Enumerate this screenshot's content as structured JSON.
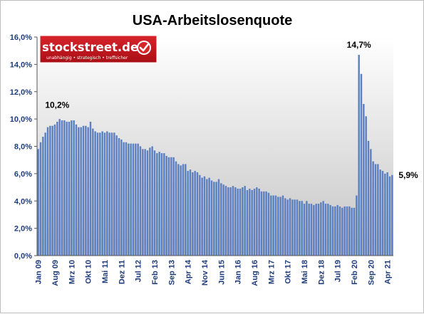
{
  "chart_data": {
    "type": "bar",
    "title": "USA-Arbeitslosenquote",
    "xlabel": "",
    "ylabel": "",
    "ylim": [
      0,
      16
    ],
    "yticks": [
      "0,0%",
      "2,0%",
      "4,0%",
      "6,0%",
      "8,0%",
      "10,0%",
      "12,0%",
      "14,0%",
      "16,0%"
    ],
    "grid": false,
    "start_month": "Jan 09",
    "x_tick_labels": [
      "Jan 09",
      "Aug 09",
      "Mrz 10",
      "Okt 10",
      "Mai 11",
      "Dez 11",
      "Jul 12",
      "Feb 13",
      "Sep 13",
      "Apr 14",
      "Nov 14",
      "Jun 15",
      "Jan 16",
      "Aug 16",
      "Mrz 17",
      "Okt 17",
      "Mai 18",
      "Dez 18",
      "Jul 19",
      "Feb 20",
      "Sep 20",
      "Apr 21"
    ],
    "series": [
      {
        "name": "",
        "color": "#5b7fc0",
        "values": [
          7.8,
          8.3,
          8.7,
          9.0,
          9.4,
          9.5,
          9.5,
          9.6,
          9.8,
          10.0,
          9.9,
          9.9,
          9.8,
          9.8,
          9.9,
          9.9,
          9.6,
          9.4,
          9.4,
          9.5,
          9.5,
          9.4,
          9.8,
          9.3,
          9.1,
          9.0,
          9.0,
          9.1,
          9.0,
          9.1,
          9.0,
          9.0,
          9.0,
          8.8,
          8.6,
          8.5,
          8.3,
          8.3,
          8.2,
          8.2,
          8.2,
          8.2,
          8.2,
          8.0,
          7.8,
          7.8,
          7.7,
          7.9,
          8.0,
          7.7,
          7.5,
          7.6,
          7.5,
          7.5,
          7.3,
          7.2,
          7.2,
          7.2,
          6.9,
          6.7,
          6.6,
          6.7,
          6.7,
          6.2,
          6.3,
          6.1,
          6.2,
          6.1,
          5.9,
          5.7,
          5.8,
          5.6,
          5.7,
          5.5,
          5.4,
          5.4,
          5.6,
          5.3,
          5.2,
          5.1,
          5.0,
          5.0,
          5.1,
          5.0,
          4.9,
          4.9,
          5.0,
          5.1,
          4.8,
          4.9,
          4.8,
          4.9,
          5.0,
          4.9,
          4.7,
          4.7,
          4.7,
          4.6,
          4.4,
          4.4,
          4.4,
          4.3,
          4.3,
          4.4,
          4.2,
          4.1,
          4.2,
          4.1,
          4.1,
          4.1,
          4.0,
          4.0,
          3.8,
          4.0,
          3.8,
          3.8,
          3.7,
          3.8,
          3.8,
          3.9,
          4.0,
          3.8,
          3.8,
          3.7,
          3.6,
          3.6,
          3.7,
          3.6,
          3.5,
          3.6,
          3.6,
          3.6,
          3.5,
          3.5,
          4.4,
          14.7,
          13.3,
          11.1,
          10.2,
          8.4,
          7.8,
          6.9,
          6.7,
          6.7,
          6.3,
          6.2,
          6.0,
          6.1,
          5.8,
          5.9
        ]
      }
    ],
    "annotations": [
      {
        "label": "10,2%",
        "value": 10.2
      },
      {
        "label": "14,7%",
        "value": 14.7
      },
      {
        "label": "5,9%",
        "value": 5.9
      }
    ]
  },
  "logo": {
    "brand": "stockstreet.de",
    "tagline": "unabhängig • strategisch • treffsicher",
    "colors": {
      "background": "#c8161d",
      "text": "#ffffff"
    }
  },
  "colors": {
    "plot_gradient_top": "#ffffff",
    "plot_gradient_bottom": "#c4c4c4",
    "axis_text": "#1f3d7a",
    "title": "#000000"
  }
}
